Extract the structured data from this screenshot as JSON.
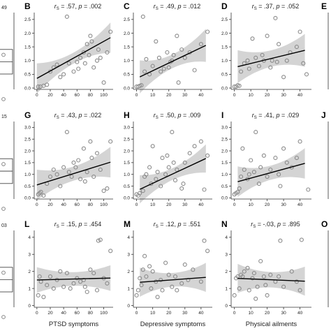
{
  "chart_data": {
    "type": "scatter",
    "x_axis_labels": [
      "PTSD symptoms",
      "Depressive symptoms",
      "Physical ailments"
    ],
    "left_fragments": [
      "49",
      "15",
      "03"
    ],
    "right_letters": [
      "E",
      "J",
      "O"
    ],
    "band_color": "#d4d4d4",
    "point_color": "#8a8a8a",
    "line_color": "#000000",
    "panels": [
      {
        "letter": "B",
        "r": ".57",
        "p": ".002",
        "xticks": [
          0,
          20,
          40,
          60,
          80,
          100
        ],
        "xlim": [
          -4,
          114
        ],
        "yticks": [
          0.0,
          0.5,
          1.0,
          1.5,
          2.0,
          2.5
        ],
        "ylim": [
          -0.05,
          2.75
        ],
        "fit": [
          0.35,
          0.0135
        ],
        "band": [
          0.2,
          0.35
        ],
        "points": [
          [
            2,
            0.05
          ],
          [
            5,
            0.05
          ],
          [
            10,
            0.08
          ],
          [
            15,
            0.12
          ],
          [
            20,
            0.6
          ],
          [
            25,
            0.75
          ],
          [
            30,
            0.85
          ],
          [
            35,
            0.4
          ],
          [
            40,
            0.5
          ],
          [
            45,
            2.6
          ],
          [
            48,
            0.9
          ],
          [
            55,
            0.6
          ],
          [
            60,
            0.95
          ],
          [
            62,
            0.7
          ],
          [
            65,
            1.1
          ],
          [
            70,
            1.3
          ],
          [
            72,
            0.9
          ],
          [
            75,
            1.6
          ],
          [
            78,
            1.2
          ],
          [
            80,
            1.9
          ],
          [
            82,
            1.7
          ],
          [
            85,
            0.75
          ],
          [
            90,
            1.0
          ],
          [
            92,
            1.4
          ],
          [
            95,
            1.1
          ],
          [
            100,
            0.2
          ],
          [
            105,
            1.3
          ],
          [
            110,
            2.05
          ]
        ]
      },
      {
        "letter": "C",
        "r": ".49",
        "p": ".012",
        "xticks": [
          0,
          10,
          20,
          30,
          40
        ],
        "xlim": [
          -2,
          47
        ],
        "yticks": [
          0.0,
          0.5,
          1.0,
          1.5,
          2.0,
          2.5
        ],
        "ylim": [
          -0.05,
          2.75
        ],
        "fit": [
          0.35,
          0.028
        ],
        "band": [
          0.25,
          0.35
        ],
        "points": [
          [
            0,
            0.05
          ],
          [
            1,
            0.05
          ],
          [
            2,
            0.08
          ],
          [
            3,
            0.1
          ],
          [
            4,
            2.6
          ],
          [
            5,
            0.6
          ],
          [
            6,
            1.05
          ],
          [
            8,
            0.5
          ],
          [
            10,
            0.8
          ],
          [
            12,
            1.7
          ],
          [
            14,
            1.1
          ],
          [
            15,
            0.6
          ],
          [
            17,
            0.7
          ],
          [
            19,
            1.3
          ],
          [
            20,
            0.75
          ],
          [
            21,
            0.95
          ],
          [
            22,
            1.0
          ],
          [
            23,
            1.2
          ],
          [
            25,
            1.9
          ],
          [
            26,
            0.2
          ],
          [
            28,
            1.4
          ],
          [
            30,
            1.1
          ],
          [
            33,
            1.3
          ],
          [
            36,
            0.65
          ],
          [
            40,
            1.6
          ],
          [
            44,
            2.05
          ]
        ]
      },
      {
        "letter": "D",
        "r": ".37",
        "p": ".052",
        "xticks": [
          0,
          10,
          20,
          30,
          40
        ],
        "xlim": [
          -2,
          47
        ],
        "yticks": [
          0.0,
          0.5,
          1.0,
          1.5,
          2.0,
          2.5
        ],
        "ylim": [
          -0.05,
          2.75
        ],
        "fit": [
          0.75,
          0.0145
        ],
        "band": [
          0.3,
          0.3
        ],
        "points": [
          [
            0,
            0.05
          ],
          [
            1,
            0.05
          ],
          [
            2,
            0.1
          ],
          [
            3,
            0.08
          ],
          [
            4,
            0.6
          ],
          [
            6,
            0.9
          ],
          [
            8,
            1.0
          ],
          [
            9,
            0.7
          ],
          [
            11,
            1.8
          ],
          [
            13,
            1.1
          ],
          [
            15,
            0.8
          ],
          [
            17,
            1.2
          ],
          [
            18,
            1.0
          ],
          [
            20,
            1.9
          ],
          [
            22,
            0.75
          ],
          [
            23,
            1.0
          ],
          [
            25,
            2.55
          ],
          [
            26,
            0.95
          ],
          [
            27,
            1.6
          ],
          [
            30,
            0.4
          ],
          [
            32,
            1.0
          ],
          [
            34,
            1.3
          ],
          [
            38,
            1.5
          ],
          [
            40,
            2.05
          ],
          [
            42,
            0.9
          ],
          [
            44,
            0.5
          ]
        ]
      },
      {
        "letter": "G",
        "r": ".43",
        "p": ".022",
        "xticks": [
          0,
          20,
          40,
          60,
          80,
          100
        ],
        "xlim": [
          -4,
          114
        ],
        "yticks": [
          0.0,
          0.5,
          1.0,
          1.5,
          2.0,
          2.5,
          3.0
        ],
        "ylim": [
          -0.05,
          3.25
        ],
        "fit": [
          0.55,
          0.0088
        ],
        "band": [
          0.3,
          0.35
        ],
        "points": [
          [
            2,
            0.15
          ],
          [
            4,
            0.2
          ],
          [
            6,
            0.25
          ],
          [
            10,
            0.1
          ],
          [
            15,
            0.6
          ],
          [
            20,
            0.9
          ],
          [
            25,
            1.2
          ],
          [
            30,
            1.0
          ],
          [
            35,
            0.5
          ],
          [
            40,
            1.3
          ],
          [
            45,
            2.8
          ],
          [
            48,
            1.1
          ],
          [
            52,
            0.9
          ],
          [
            55,
            1.5
          ],
          [
            58,
            1.3
          ],
          [
            62,
            1.6
          ],
          [
            65,
            0.8
          ],
          [
            70,
            2.1
          ],
          [
            72,
            0.7
          ],
          [
            75,
            1.1
          ],
          [
            80,
            2.4
          ],
          [
            82,
            1.7
          ],
          [
            85,
            0.9
          ],
          [
            90,
            1.9
          ],
          [
            95,
            1.2
          ],
          [
            100,
            0.3
          ],
          [
            105,
            0.4
          ],
          [
            110,
            2.4
          ]
        ]
      },
      {
        "letter": "H",
        "r": ".50",
        "p": ".009",
        "xticks": [
          0,
          10,
          20,
          30,
          40
        ],
        "xlim": [
          -2,
          47
        ],
        "yticks": [
          0.0,
          0.5,
          1.0,
          1.5,
          2.0,
          2.5,
          3.0
        ],
        "ylim": [
          -0.05,
          3.25
        ],
        "fit": [
          0.3,
          0.032
        ],
        "band": [
          0.25,
          0.35
        ],
        "points": [
          [
            0,
            0.15
          ],
          [
            1,
            0.1
          ],
          [
            2,
            0.2
          ],
          [
            4,
            0.3
          ],
          [
            5,
            0.9
          ],
          [
            6,
            1.0
          ],
          [
            8,
            1.3
          ],
          [
            9,
            0.6
          ],
          [
            10,
            2.2
          ],
          [
            12,
            0.8
          ],
          [
            13,
            1.1
          ],
          [
            15,
            0.5
          ],
          [
            16,
            1.7
          ],
          [
            18,
            1.0
          ],
          [
            19,
            1.8
          ],
          [
            20,
            1.3
          ],
          [
            22,
            2.8
          ],
          [
            23,
            1.5
          ],
          [
            24,
            0.75
          ],
          [
            25,
            1.2
          ],
          [
            28,
            0.4
          ],
          [
            29,
            0.6
          ],
          [
            30,
            1.5
          ],
          [
            33,
            1.9
          ],
          [
            36,
            2.2
          ],
          [
            40,
            2.4
          ],
          [
            42,
            0.35
          ],
          [
            44,
            1.8
          ]
        ]
      },
      {
        "letter": "I",
        "r": ".41",
        "p": ".029",
        "xticks": [
          0,
          10,
          20,
          30,
          40
        ],
        "xlim": [
          -2,
          47
        ],
        "yticks": [
          0.0,
          0.5,
          1.0,
          1.5,
          2.0,
          2.5,
          3.0
        ],
        "ylim": [
          -0.05,
          3.25
        ],
        "fit": [
          0.65,
          0.019
        ],
        "band": [
          0.3,
          0.35
        ],
        "points": [
          [
            0,
            0.15
          ],
          [
            1,
            0.2
          ],
          [
            2,
            0.25
          ],
          [
            3,
            0.4
          ],
          [
            4,
            0.9
          ],
          [
            5,
            2.1
          ],
          [
            6,
            1.2
          ],
          [
            8,
            0.8
          ],
          [
            9,
            1.0
          ],
          [
            10,
            1.6
          ],
          [
            12,
            1.1
          ],
          [
            13,
            2.8
          ],
          [
            15,
            0.6
          ],
          [
            16,
            1.3
          ],
          [
            18,
            1.8
          ],
          [
            20,
            0.9
          ],
          [
            22,
            1.2
          ],
          [
            25,
            1.7
          ],
          [
            27,
            1.0
          ],
          [
            28,
            0.5
          ],
          [
            30,
            2.1
          ],
          [
            32,
            1.5
          ],
          [
            35,
            1.3
          ],
          [
            38,
            1.7
          ],
          [
            40,
            2.4
          ],
          [
            45,
            0.35
          ]
        ]
      },
      {
        "letter": "L",
        "r": ".15",
        "p": ".454",
        "xticks": [
          0,
          20,
          40,
          60,
          80,
          100
        ],
        "xlim": [
          -4,
          114
        ],
        "yticks": [
          0,
          1,
          2,
          3,
          4
        ],
        "ylim": [
          -0.1,
          4.4
        ],
        "fit": [
          1.5,
          0.001
        ],
        "band": [
          0.4,
          0.35
        ],
        "points": [
          [
            2,
            0.6
          ],
          [
            4,
            1.7
          ],
          [
            6,
            1.4
          ],
          [
            10,
            0.5
          ],
          [
            15,
            1.2
          ],
          [
            20,
            1.7
          ],
          [
            25,
            1.0
          ],
          [
            30,
            1.5
          ],
          [
            35,
            2.0
          ],
          [
            40,
            1.1
          ],
          [
            45,
            1.9
          ],
          [
            50,
            1.0
          ],
          [
            55,
            1.3
          ],
          [
            60,
            1.6
          ],
          [
            65,
            1.4
          ],
          [
            70,
            1.5
          ],
          [
            72,
            1.1
          ],
          [
            75,
            0.8
          ],
          [
            80,
            2.1
          ],
          [
            85,
            1.9
          ],
          [
            90,
            0.9
          ],
          [
            92,
            3.8
          ],
          [
            95,
            3.85
          ],
          [
            100,
            1.6
          ],
          [
            105,
            1.3
          ],
          [
            110,
            3.2
          ]
        ]
      },
      {
        "letter": "M",
        "r": ".12",
        "p": ".551",
        "xticks": [
          0,
          10,
          20,
          30,
          40
        ],
        "xlim": [
          -2,
          47
        ],
        "yticks": [
          0,
          1,
          2,
          3,
          4
        ],
        "ylim": [
          -0.1,
          4.4
        ],
        "fit": [
          1.35,
          0.007
        ],
        "band": [
          0.4,
          0.45
        ],
        "points": [
          [
            0,
            0.6
          ],
          [
            1,
            0.9
          ],
          [
            2,
            1.6
          ],
          [
            3,
            1.2
          ],
          [
            4,
            2.1
          ],
          [
            5,
            2.9
          ],
          [
            6,
            1.7
          ],
          [
            8,
            2.3
          ],
          [
            9,
            1.0
          ],
          [
            10,
            2.0
          ],
          [
            12,
            1.4
          ],
          [
            13,
            0.5
          ],
          [
            15,
            1.5
          ],
          [
            16,
            0.9
          ],
          [
            18,
            2.5
          ],
          [
            20,
            1.8
          ],
          [
            22,
            1.1
          ],
          [
            24,
            1.7
          ],
          [
            25,
            0.9
          ],
          [
            28,
            1.3
          ],
          [
            30,
            2.4
          ],
          [
            32,
            1.5
          ],
          [
            35,
            2.1
          ],
          [
            40,
            1.4
          ],
          [
            42,
            3.8
          ],
          [
            44,
            3.2
          ]
        ]
      },
      {
        "letter": "N",
        "r": "-.03",
        "p": ".895",
        "xticks": [
          0,
          10,
          20,
          30,
          40
        ],
        "xlim": [
          -2,
          47
        ],
        "yticks": [
          0,
          1,
          2,
          3,
          4
        ],
        "ylim": [
          -0.1,
          4.4
        ],
        "fit": [
          1.6,
          -0.004
        ],
        "band": [
          0.45,
          0.4
        ],
        "points": [
          [
            0,
            0.6
          ],
          [
            1,
            1.6
          ],
          [
            2,
            1.7
          ],
          [
            3,
            1.0
          ],
          [
            4,
            1.8
          ],
          [
            5,
            1.7
          ],
          [
            6,
            2.0
          ],
          [
            8,
            2.2
          ],
          [
            9,
            0.9
          ],
          [
            11,
            1.6
          ],
          [
            12,
            1.9
          ],
          [
            13,
            0.4
          ],
          [
            14,
            1.1
          ],
          [
            16,
            2.6
          ],
          [
            18,
            1.7
          ],
          [
            19,
            1.2
          ],
          [
            20,
            0.6
          ],
          [
            22,
            1.8
          ],
          [
            25,
            1.4
          ],
          [
            27,
            1.7
          ],
          [
            28,
            3.8
          ],
          [
            30,
            1.1
          ],
          [
            35,
            2.0
          ],
          [
            38,
            1.4
          ],
          [
            40,
            0.9
          ],
          [
            41,
            3.85
          ]
        ]
      }
    ]
  }
}
